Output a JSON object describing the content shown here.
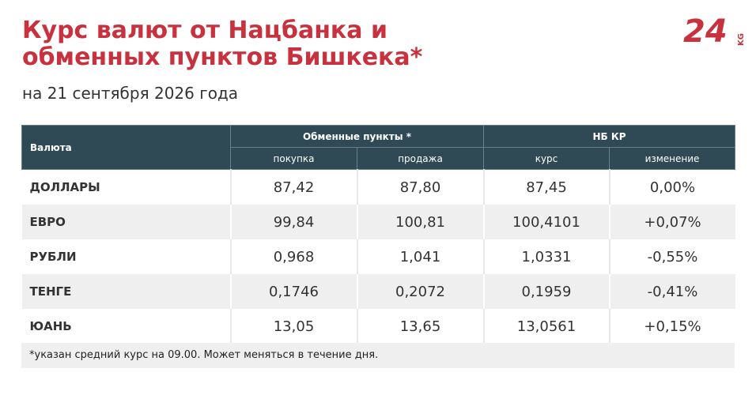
{
  "header": {
    "title_line1": "Курс валют от Нацбанка и",
    "title_line2": "обменных пунктов Бишкека*",
    "subtitle": "на 21 сентября 2026 года"
  },
  "logo": {
    "text": "24",
    "suffix": "KG"
  },
  "table": {
    "group_headers": {
      "currency": "Валюта",
      "exchange": "Обменные пункты *",
      "nb": "НБ КР"
    },
    "sub_headers": [
      "покупка",
      "продажа",
      "курс",
      "изменение"
    ],
    "rows": [
      [
        "ДОЛЛАРЫ",
        "87,42",
        "87,80",
        "87,45",
        "0,00%"
      ],
      [
        "ЕВРО",
        "99,84",
        "100,81",
        "100,4101",
        "+0,07%"
      ],
      [
        "РУБЛИ",
        "0,968",
        "1,041",
        "1,0331",
        "-0,55%"
      ],
      [
        "ТЕНГЕ",
        "0,1746",
        "0,2072",
        "0,1959",
        "-0,41%"
      ],
      [
        "ЮАНЬ",
        "13,05",
        "13,65",
        "13,0561",
        "+0,15%"
      ]
    ]
  },
  "footnote": "*указан средний курс на 09.00. Может меняться в течение дня."
}
